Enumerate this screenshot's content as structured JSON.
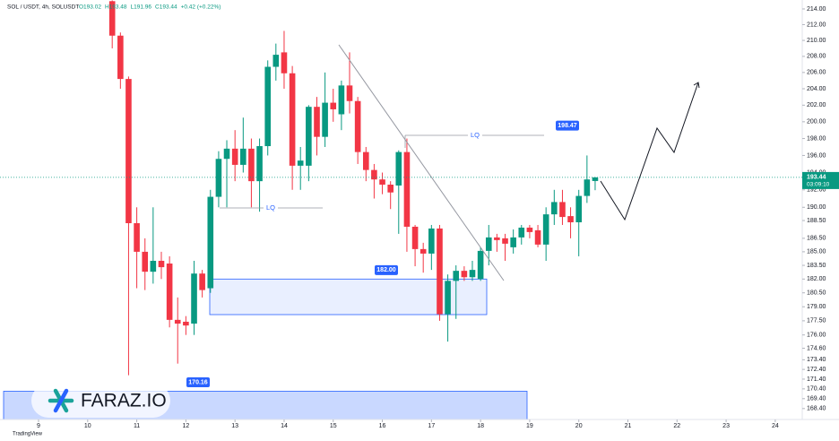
{
  "chart_data": {
    "type": "candlestick",
    "title": "SOL / USDT, 4h, SOLUSDT",
    "ohlc_legend": [
      "O193.02",
      "H193.48",
      "L191.96",
      "C193.44",
      "+0.42 (+0.22%)"
    ],
    "x": [
      10.5,
      10.667,
      10.833,
      11,
      11.167,
      11.333,
      11.5,
      11.667,
      11.833,
      12,
      12.167,
      12.333,
      12.5,
      12.667,
      12.833,
      13,
      13.167,
      13.333,
      13.5,
      13.667,
      13.833,
      14,
      14.167,
      14.333,
      14.5,
      14.667,
      14.833,
      15,
      15.167,
      15.333,
      15.5,
      15.667,
      15.833,
      16,
      16.167,
      16.333,
      16.5,
      16.667,
      16.833,
      17,
      17.167,
      17.333,
      17.5,
      17.667,
      17.833,
      18,
      18.167,
      18.333,
      18.5,
      18.667,
      18.833,
      19,
      19.167,
      19.333,
      19.5,
      19.667,
      19.833,
      20,
      20.167,
      20.333
    ],
    "open": [
      215,
      210.6,
      205.2,
      188.2,
      185,
      182.8,
      184,
      183.7,
      177.6,
      177.4,
      177.2,
      182.6,
      181,
      191.2,
      195.6,
      196.8,
      194.9,
      196.8,
      193,
      197.1,
      206.7,
      208.5,
      205.9,
      194.8,
      194.8,
      201.8,
      198.2,
      202.3,
      200.9,
      204.4,
      202.5,
      196.4,
      194.3,
      193.2,
      192.6,
      192.5,
      196.4,
      187.8,
      185.3,
      184.8,
      187.6,
      178.2,
      181.8,
      182.9,
      182.2,
      182,
      185.1,
      186.6,
      186.5,
      185.5,
      186.6,
      187.7,
      187.4,
      185.8,
      189.2,
      190.6,
      189,
      188.3,
      191.3,
      193.02
    ],
    "high": [
      215.1,
      211,
      205.5,
      190,
      186.5,
      190,
      185,
      184.5,
      180,
      178,
      184,
      183,
      192,
      196.5,
      197.8,
      199,
      200.5,
      198,
      198,
      207.5,
      209.6,
      211.2,
      206.8,
      197,
      202,
      203,
      206,
      204,
      205,
      208.5,
      203,
      197,
      195,
      194,
      193,
      196.6,
      198,
      188,
      186,
      188,
      188,
      182.5,
      183.5,
      183.4,
      184,
      185.5,
      188,
      187,
      187,
      187.5,
      188,
      188,
      188,
      190,
      192,
      192,
      190,
      192,
      196,
      193.48
    ],
    "low": [
      209,
      204,
      171.8,
      181,
      180.8,
      181.5,
      182,
      176.8,
      173,
      176,
      176,
      180,
      180.5,
      190,
      190,
      193,
      194,
      190,
      189.5,
      196,
      205,
      204,
      192,
      192,
      193,
      196,
      197,
      200,
      199,
      201,
      195,
      193,
      191,
      191.5,
      189.8,
      187,
      185,
      183.4,
      182.7,
      183,
      177.5,
      175.3,
      177.7,
      181.8,
      181.8,
      181.8,
      183.5,
      185,
      184,
      184.8,
      185.8,
      186.5,
      185.5,
      184,
      188,
      188,
      186.5,
      184.5,
      190.5,
      191.96
    ],
    "close": [
      210.6,
      205.2,
      188.2,
      185,
      182.8,
      184,
      183.3,
      177.6,
      177.2,
      177,
      182.6,
      180.8,
      191.2,
      195.6,
      196.8,
      194.9,
      196.8,
      193,
      197.1,
      206.7,
      208.2,
      205.9,
      194.8,
      195.4,
      201.8,
      198.2,
      202.3,
      201.5,
      204.4,
      202.5,
      196.4,
      194.3,
      193.2,
      192.6,
      191.7,
      196.4,
      187.8,
      185.3,
      184.8,
      187.6,
      178.2,
      181.8,
      182.9,
      182.2,
      183,
      185.1,
      186.6,
      186.3,
      185.9,
      186.6,
      187.7,
      187.2,
      185.8,
      189.2,
      190.6,
      188.9,
      188.3,
      191.3,
      193.2,
      193.44
    ],
    "up_color": "#089981",
    "down_color": "#f23645",
    "log_scale": true,
    "xlim": [
      8.215,
      24.55
    ],
    "xticks": [
      9,
      10,
      11,
      12,
      13,
      14,
      15,
      16,
      17,
      18,
      19,
      20,
      21,
      22,
      23,
      24
    ],
    "ylim": [
      167.3,
      215.15
    ],
    "yticks": [
      {
        "value": 214,
        "label": "214.00"
      },
      {
        "value": 212,
        "label": "212.00"
      },
      {
        "value": 210,
        "label": "210.00"
      },
      {
        "value": 208,
        "label": "208.00"
      },
      {
        "value": 206,
        "label": "206.00"
      },
      {
        "value": 204,
        "label": "204.00"
      },
      {
        "value": 202,
        "label": "202.00"
      },
      {
        "value": 200,
        "label": "200.00"
      },
      {
        "value": 198,
        "label": "198.00"
      },
      {
        "value": 196,
        "label": "196.00"
      },
      {
        "value": 194,
        "label": "194.00"
      },
      {
        "value": 192,
        "label": "192.00"
      },
      {
        "value": 190,
        "label": "190.00"
      },
      {
        "value": 188.5,
        "label": "188.50"
      },
      {
        "value": 186.5,
        "label": "186.50"
      },
      {
        "value": 185,
        "label": "185.00"
      },
      {
        "value": 183.5,
        "label": "183.50"
      },
      {
        "value": 182,
        "label": "182.00"
      },
      {
        "value": 180.5,
        "label": "180.50"
      },
      {
        "value": 179,
        "label": "179.00"
      },
      {
        "value": 177.5,
        "label": "177.50"
      },
      {
        "value": 176,
        "label": "176.00"
      },
      {
        "value": 174.6,
        "label": "174.60"
      },
      {
        "value": 173.4,
        "label": "173.40"
      },
      {
        "value": 172.4,
        "label": "172.40"
      },
      {
        "value": 171.4,
        "label": "171.40"
      },
      {
        "value": 170.4,
        "label": "170.40"
      },
      {
        "value": 169.4,
        "label": "169.40"
      },
      {
        "value": 168.4,
        "label": "168.40"
      }
    ],
    "grid": false,
    "last_price": {
      "value": 193.44,
      "label": "193.44"
    },
    "countdown": "03:09:10",
    "price_labels": [
      {
        "value": 198.47,
        "label": "198.47"
      },
      {
        "value": 182,
        "label": "182.00"
      },
      {
        "value": 170.16,
        "label": "170.16"
      }
    ],
    "lq_labels": [
      "LQ",
      "LQ"
    ],
    "logo": "FARAZ.IO",
    "footer": "TradingView"
  }
}
